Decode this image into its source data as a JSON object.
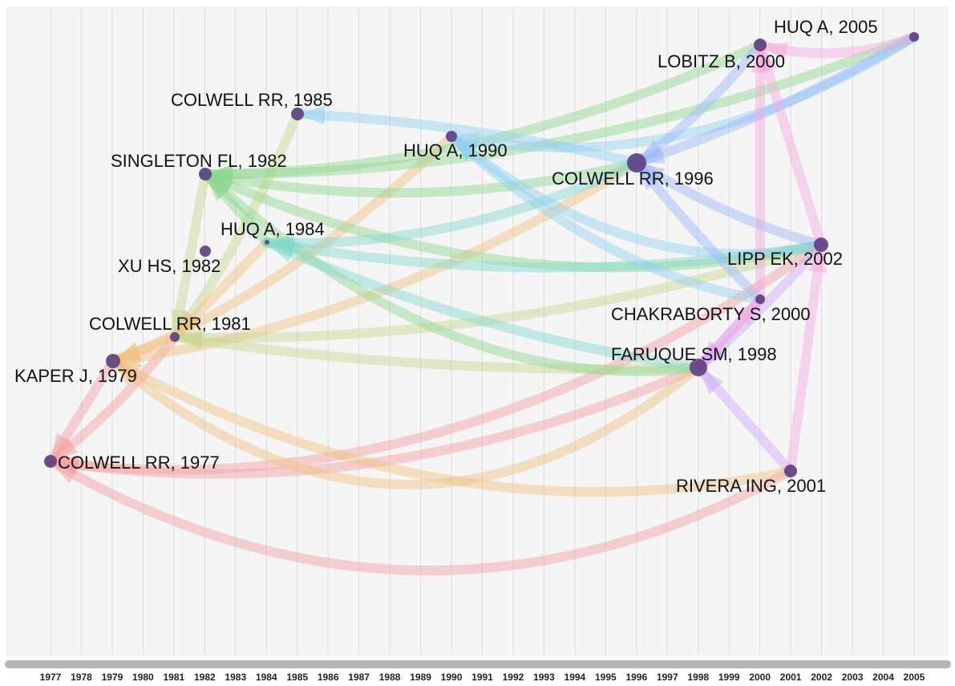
{
  "axis": {
    "years": [
      "1977",
      "1978",
      "1979",
      "1980",
      "1981",
      "1982",
      "1983",
      "1984",
      "1985",
      "1986",
      "1987",
      "1988",
      "1989",
      "1990",
      "1991",
      "1992",
      "1993",
      "1994",
      "1995",
      "1996",
      "1997",
      "1998",
      "1999",
      "2000",
      "2001",
      "2002",
      "2003",
      "2004",
      "2005"
    ]
  },
  "nodes": [
    {
      "label": "HUQ A, 2005"
    },
    {
      "label": "LOBITZ B, 2000"
    },
    {
      "label": "COLWELL RR, 1985"
    },
    {
      "label": "HUQ A, 1990"
    },
    {
      "label": "SINGLETON FL, 1982"
    },
    {
      "label": "COLWELL RR, 1996"
    },
    {
      "label": "HUQ A, 1984"
    },
    {
      "label": "XU HS, 1982"
    },
    {
      "label": "LIPP EK, 2002"
    },
    {
      "label": "CHAKRABORTY S, 2000"
    },
    {
      "label": "COLWELL RR, 1981"
    },
    {
      "label": "KAPER J, 1979"
    },
    {
      "label": "FARUQUE SM, 1998"
    },
    {
      "label": "COLWELL RR, 1977"
    },
    {
      "label": "RIVERA ING, 2001"
    }
  ]
}
